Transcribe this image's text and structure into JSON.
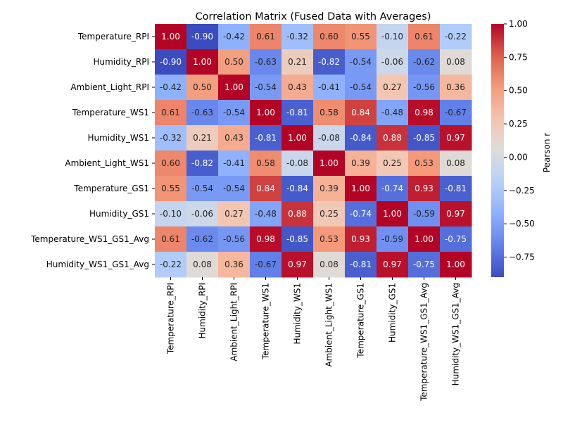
{
  "chart_data": {
    "type": "heatmap",
    "title": "Correlation Matrix (Fused Data with Averages)",
    "rows": [
      "Temperature_RPI",
      "Humidity_RPI",
      "Ambient_Light_RPI",
      "Temperature_WS1",
      "Humidity_WS1",
      "Ambient_Light_WS1",
      "Temperature_GS1",
      "Humidity_GS1",
      "Temperature_WS1_GS1_Avg",
      "Humidity_WS1_GS1_Avg"
    ],
    "columns": [
      "Temperature_RPI",
      "Humidity_RPI",
      "Ambient_Light_RPI",
      "Temperature_WS1",
      "Humidity_WS1",
      "Ambient_Light_WS1",
      "Temperature_GS1",
      "Humidity_GS1",
      "Temperature_WS1_GS1_Avg",
      "Humidity_WS1_GS1_Avg"
    ],
    "values": [
      [
        1.0,
        -0.9,
        -0.42,
        0.61,
        -0.32,
        0.6,
        0.55,
        -0.1,
        0.61,
        -0.22
      ],
      [
        -0.9,
        1.0,
        0.5,
        -0.63,
        0.21,
        -0.82,
        -0.54,
        -0.06,
        -0.62,
        0.08
      ],
      [
        -0.42,
        0.5,
        1.0,
        -0.54,
        0.43,
        -0.41,
        -0.54,
        0.27,
        -0.56,
        0.36
      ],
      [
        0.61,
        -0.63,
        -0.54,
        1.0,
        -0.81,
        0.58,
        0.84,
        -0.48,
        0.98,
        -0.67
      ],
      [
        -0.32,
        0.21,
        0.43,
        -0.81,
        1.0,
        -0.08,
        -0.84,
        0.88,
        -0.85,
        0.97
      ],
      [
        0.6,
        -0.82,
        -0.41,
        0.58,
        -0.08,
        1.0,
        0.39,
        0.25,
        0.53,
        0.08
      ],
      [
        0.55,
        -0.54,
        -0.54,
        0.84,
        -0.84,
        0.39,
        1.0,
        -0.74,
        0.93,
        -0.81
      ],
      [
        -0.1,
        -0.06,
        0.27,
        -0.48,
        0.88,
        0.25,
        -0.74,
        1.0,
        -0.59,
        0.97
      ],
      [
        0.61,
        -0.62,
        -0.56,
        0.98,
        -0.85,
        0.53,
        0.93,
        -0.59,
        1.0,
        -0.75
      ],
      [
        -0.22,
        0.08,
        0.36,
        -0.67,
        0.97,
        0.08,
        -0.81,
        0.97,
        -0.75,
        1.0
      ]
    ],
    "colorbar": {
      "label": "Pearson r",
      "colormap": "coolwarm",
      "range": [
        -0.9,
        1.0
      ],
      "ticks": [
        1.0,
        0.75,
        0.5,
        0.25,
        0.0,
        -0.25,
        -0.5,
        -0.75
      ],
      "tick_labels": [
        "1.00",
        "0.75",
        "0.50",
        "0.25",
        "0.00",
        "−0.25",
        "−0.50",
        "−0.75"
      ]
    }
  }
}
